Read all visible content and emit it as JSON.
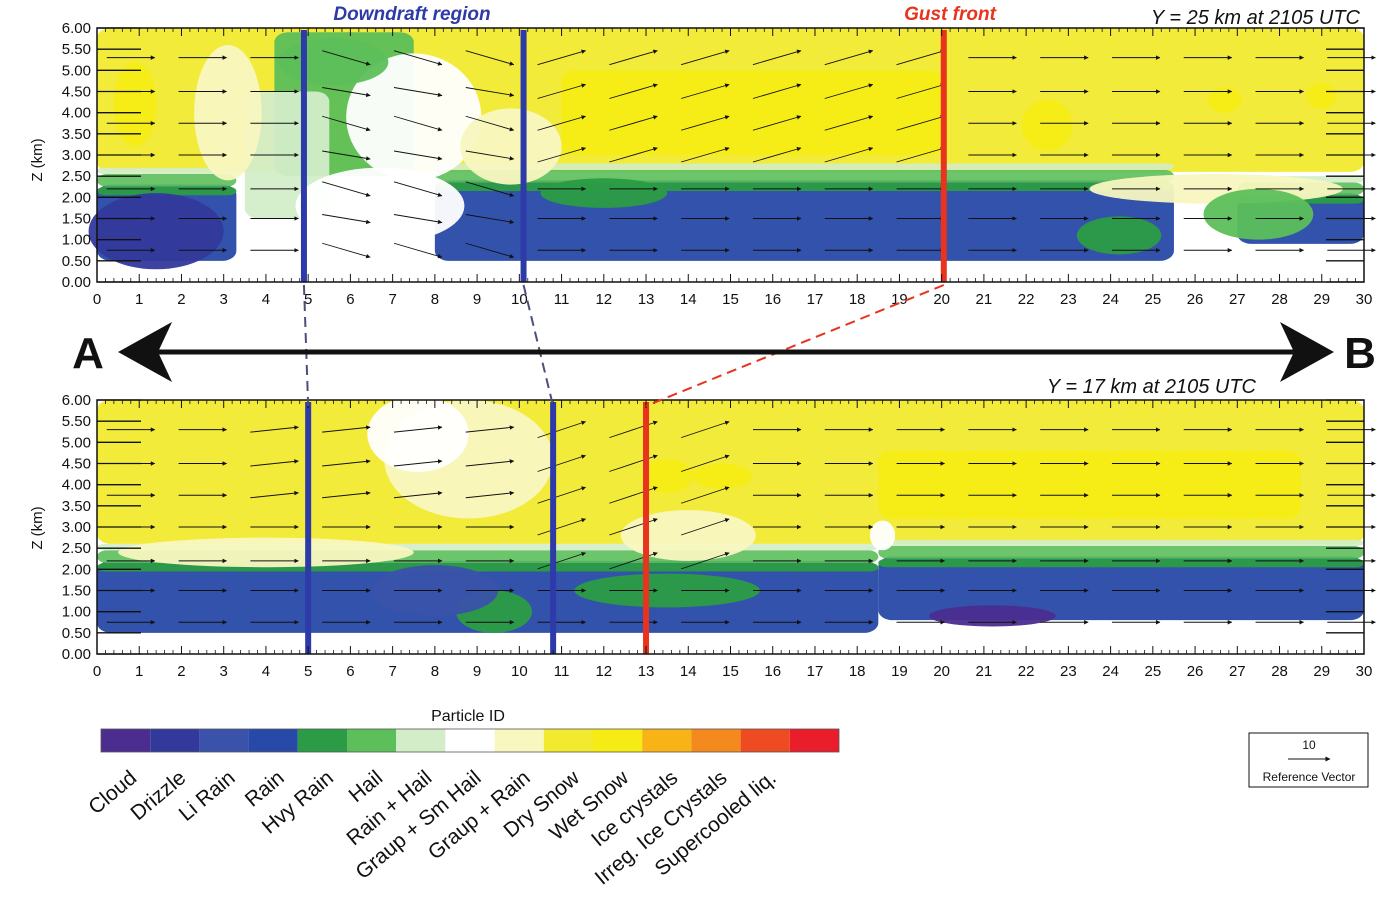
{
  "chart_data": [
    {
      "type": "heatmap",
      "title": "Y = 25 km   at 2105 UTC",
      "xlabel": "",
      "ylabel": "Z (km)",
      "xlim": [
        0,
        30
      ],
      "ylim": [
        0,
        6
      ],
      "x_ticks": [
        "0",
        "1",
        "2",
        "3",
        "4",
        "5",
        "6",
        "7",
        "8",
        "9",
        "10",
        "11",
        "12",
        "13",
        "14",
        "15",
        "16",
        "17",
        "18",
        "19",
        "20",
        "21",
        "22",
        "23",
        "24",
        "25",
        "26",
        "27",
        "28",
        "29",
        "30"
      ],
      "y_ticks": [
        "0.00",
        "0.50",
        "1.00",
        "1.50",
        "2.00",
        "2.50",
        "3.00",
        "3.50",
        "4.00",
        "4.50",
        "5.00",
        "5.50",
        "6.00"
      ],
      "annotations": [
        {
          "label": "Downdraft region",
          "color": "#2e3aa8",
          "lines_x": [
            4.9,
            10.1
          ]
        },
        {
          "label": "Gust front",
          "color": "#e8331e",
          "lines_x": [
            20.05
          ]
        }
      ],
      "regions": [
        {
          "class": "Dry Snow",
          "x0": 0,
          "x1": 30,
          "z0": 2.6,
          "z1": 6.0
        },
        {
          "class": "Wet Snow",
          "x0": 11,
          "x1": 20,
          "z0": 3.0,
          "z1": 5.0
        },
        {
          "class": "Hail",
          "x0": 4.2,
          "x1": 7.5,
          "z0": 2.5,
          "z1": 5.9
        },
        {
          "class": "Rain + Hail",
          "x0": 3.5,
          "x1": 5.5,
          "z0": 1.5,
          "z1": 4.5
        },
        {
          "class": "Rain",
          "x0": 0,
          "x1": 3.3,
          "z0": 0.5,
          "z1": 2.3
        },
        {
          "class": "Rain",
          "x0": 8,
          "x1": 25.5,
          "z0": 0.5,
          "z1": 2.4
        },
        {
          "class": "Rain",
          "x0": 27,
          "x1": 30,
          "z0": 0.9,
          "z1": 2.1
        }
      ]
    },
    {
      "type": "heatmap",
      "title": "Y = 17 km   at 2105 UTC",
      "xlabel": "",
      "ylabel": "Z (km)",
      "xlim": [
        0,
        30
      ],
      "ylim": [
        0,
        6
      ],
      "x_ticks": [
        "0",
        "1",
        "2",
        "3",
        "4",
        "5",
        "6",
        "7",
        "8",
        "9",
        "10",
        "11",
        "12",
        "13",
        "14",
        "15",
        "16",
        "17",
        "18",
        "19",
        "20",
        "21",
        "22",
        "23",
        "24",
        "25",
        "26",
        "27",
        "28",
        "29",
        "30"
      ],
      "y_ticks": [
        "0.00",
        "0.50",
        "1.00",
        "1.50",
        "2.00",
        "2.50",
        "3.00",
        "3.50",
        "4.00",
        "4.50",
        "5.00",
        "5.50",
        "6.00"
      ],
      "annotations": [
        {
          "label": "",
          "color": "#2e3aa8",
          "lines_x": [
            5.0,
            10.8
          ]
        },
        {
          "label": "",
          "color": "#e8331e",
          "lines_x": [
            13.0
          ]
        }
      ],
      "regions": [
        {
          "class": "Dry Snow",
          "x0": 0,
          "x1": 30,
          "z0": 2.6,
          "z1": 6.0
        },
        {
          "class": "Wet Snow",
          "x0": 18.5,
          "x1": 28.5,
          "z0": 3.2,
          "z1": 4.8
        },
        {
          "class": "Rain",
          "x0": 0,
          "x1": 18.5,
          "z0": 0.5,
          "z1": 2.2
        },
        {
          "class": "Rain",
          "x0": 18.5,
          "x1": 30,
          "z0": 0.8,
          "z1": 2.3
        }
      ]
    }
  ],
  "direction": {
    "left": "A",
    "right": "B"
  },
  "legend": {
    "title": "Particle ID",
    "classes": [
      {
        "label": "Cloud",
        "color": "#4b2d8f"
      },
      {
        "label": "Drizzle",
        "color": "#33399b"
      },
      {
        "label": "Li Rain",
        "color": "#3a52aa"
      },
      {
        "label": "Rain",
        "color": "#2749a7"
      },
      {
        "label": "Hvy Rain",
        "color": "#2b9c45"
      },
      {
        "label": "Hail",
        "color": "#5cbf5a"
      },
      {
        "label": "Rain + Hail",
        "color": "#d3edc8"
      },
      {
        "label": "Graup + Sm Hail",
        "color": "#ffffff"
      },
      {
        "label": "Graup + Rain",
        "color": "#f8f7c0"
      },
      {
        "label": "Dry Snow",
        "color": "#f1ea2e"
      },
      {
        "label": "Wet Snow",
        "color": "#f6ec14"
      },
      {
        "label": "Ice crystals",
        "color": "#f8b416"
      },
      {
        "label": "Irreg. Ice Crystals",
        "color": "#f48a1e"
      },
      {
        "label": "Supercooled liq.",
        "color": "#ee4b22"
      },
      {
        "label": "",
        "color": "#ea1e2b"
      }
    ]
  },
  "reference_vector": {
    "value": "10",
    "label": "Reference Vector"
  }
}
